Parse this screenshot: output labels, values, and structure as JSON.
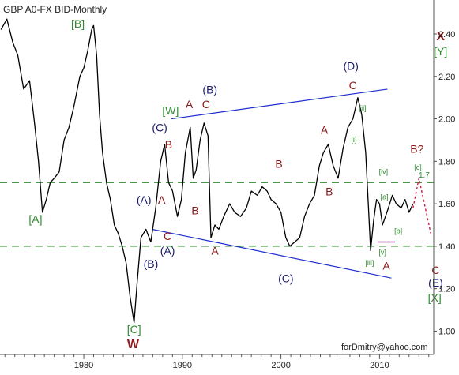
{
  "chart_data": {
    "type": "line",
    "title": "GBP A0-FX BID-Monthly",
    "watermark": "forDmitry@yahoo.com",
    "x_ticks": [
      1980,
      1990,
      2000,
      2010
    ],
    "y_ticks": [
      "1.00",
      "1.20",
      "1.40",
      "1.60",
      "1.80",
      "2.00",
      "2.20",
      "2.40"
    ],
    "xlim": [
      1971.5,
      2015.5
    ],
    "ylim": [
      0.89,
      2.56
    ],
    "grid": false,
    "series": [
      {
        "values": [
          [
            1971.6,
            2.42
          ],
          [
            1972.2,
            2.47
          ],
          [
            1972.8,
            2.36
          ],
          [
            1973.3,
            2.3
          ],
          [
            1973.9,
            2.14
          ],
          [
            1974.5,
            2.18
          ],
          [
            1975.0,
            1.98
          ],
          [
            1975.4,
            1.8
          ],
          [
            1975.8,
            1.56
          ],
          [
            1976.2,
            1.62
          ],
          [
            1976.6,
            1.7
          ],
          [
            1977.0,
            1.72
          ],
          [
            1977.5,
            1.75
          ],
          [
            1978.0,
            1.9
          ],
          [
            1978.5,
            1.96
          ],
          [
            1979.0,
            2.06
          ],
          [
            1979.6,
            2.2
          ],
          [
            1980.0,
            2.24
          ],
          [
            1980.4,
            2.32
          ],
          [
            1980.8,
            2.42
          ],
          [
            1981.0,
            2.44
          ],
          [
            1981.3,
            2.3
          ],
          [
            1981.6,
            2.02
          ],
          [
            1981.9,
            1.84
          ],
          [
            1982.3,
            1.7
          ],
          [
            1982.7,
            1.62
          ],
          [
            1983.1,
            1.5
          ],
          [
            1983.5,
            1.46
          ],
          [
            1983.9,
            1.4
          ],
          [
            1984.3,
            1.32
          ],
          [
            1984.7,
            1.16
          ],
          [
            1985.1,
            1.04
          ],
          [
            1985.4,
            1.22
          ],
          [
            1985.8,
            1.44
          ],
          [
            1986.3,
            1.48
          ],
          [
            1986.8,
            1.42
          ],
          [
            1987.3,
            1.58
          ],
          [
            1987.8,
            1.8
          ],
          [
            1988.2,
            1.88
          ],
          [
            1988.6,
            1.7
          ],
          [
            1989.0,
            1.66
          ],
          [
            1989.5,
            1.54
          ],
          [
            1989.9,
            1.62
          ],
          [
            1990.3,
            1.84
          ],
          [
            1990.8,
            1.96
          ],
          [
            1991.1,
            1.72
          ],
          [
            1991.4,
            1.76
          ],
          [
            1991.8,
            1.9
          ],
          [
            1992.2,
            1.98
          ],
          [
            1992.6,
            1.92
          ],
          [
            1992.9,
            1.44
          ],
          [
            1993.3,
            1.5
          ],
          [
            1993.7,
            1.48
          ],
          [
            1994.2,
            1.54
          ],
          [
            1994.8,
            1.6
          ],
          [
            1995.3,
            1.56
          ],
          [
            1995.9,
            1.54
          ],
          [
            1996.5,
            1.58
          ],
          [
            1997.0,
            1.66
          ],
          [
            1997.6,
            1.64
          ],
          [
            1998.1,
            1.68
          ],
          [
            1998.6,
            1.66
          ],
          [
            1999.0,
            1.62
          ],
          [
            1999.5,
            1.6
          ],
          [
            2000.0,
            1.56
          ],
          [
            2000.5,
            1.44
          ],
          [
            2000.9,
            1.4
          ],
          [
            2001.4,
            1.42
          ],
          [
            2001.9,
            1.44
          ],
          [
            2002.4,
            1.54
          ],
          [
            2002.9,
            1.6
          ],
          [
            2003.4,
            1.64
          ],
          [
            2003.9,
            1.78
          ],
          [
            2004.3,
            1.84
          ],
          [
            2004.8,
            1.88
          ],
          [
            2005.3,
            1.78
          ],
          [
            2005.8,
            1.72
          ],
          [
            2006.3,
            1.86
          ],
          [
            2006.8,
            1.96
          ],
          [
            2007.3,
            2.0
          ],
          [
            2007.8,
            2.1
          ],
          [
            2008.2,
            2.02
          ],
          [
            2008.6,
            1.84
          ],
          [
            2008.9,
            1.56
          ],
          [
            2009.1,
            1.38
          ],
          [
            2009.4,
            1.52
          ],
          [
            2009.7,
            1.62
          ],
          [
            2010.0,
            1.6
          ],
          [
            2010.3,
            1.5
          ],
          [
            2010.6,
            1.54
          ],
          [
            2010.9,
            1.58
          ],
          [
            2011.3,
            1.64
          ],
          [
            2011.7,
            1.6
          ],
          [
            2012.2,
            1.58
          ],
          [
            2012.6,
            1.62
          ],
          [
            2013.0,
            1.56
          ],
          [
            2013.4,
            1.6
          ]
        ]
      }
    ],
    "overlays": {
      "support_line": [
        [
          1996.1,
          1.4
        ],
        [
          2015.5,
          1.4
        ]
      ],
      "resistance_line": [
        [
          1975.0,
          1.7
        ],
        [
          2015.5,
          1.7
        ]
      ],
      "resistance_label": "1.7",
      "upper_channel": [
        [
          1988.9,
          2.0
        ],
        [
          2010.8,
          2.14
        ]
      ],
      "lower_channel": [
        [
          1986.9,
          1.48
        ],
        [
          2011.2,
          1.25
        ]
      ],
      "projection_path": [
        [
          2013.4,
          1.58
        ],
        [
          2014.0,
          1.72
        ],
        [
          2015.2,
          1.46
        ]
      ],
      "support_mark": [
        [
          2009.8,
          1.42
        ],
        [
          2016.5,
          1.42
        ]
      ]
    },
    "annotations": [
      {
        "text": "[B]",
        "color": "green",
        "x": 1979.4,
        "y": 2.43
      },
      {
        "text": "[A]",
        "color": "green",
        "x": 1975.1,
        "y": 1.51
      },
      {
        "text": "[C]",
        "color": "green",
        "x": 1985.1,
        "y": 0.99
      },
      {
        "text": "W",
        "color": "darkred",
        "x": 1985.0,
        "y": 0.92
      },
      {
        "text": "X",
        "color": "darkred",
        "x": 2016.2,
        "y": 2.37
      },
      {
        "text": "[Y]",
        "color": "green",
        "x": 2016.2,
        "y": 2.3
      },
      {
        "text": "[W]",
        "color": "green",
        "x": 1988.8,
        "y": 2.02
      },
      {
        "text": "(B)",
        "color": "navy",
        "x": 1992.8,
        "y": 2.12
      },
      {
        "text": "(D)",
        "color": "navy",
        "x": 2007.1,
        "y": 2.23
      },
      {
        "text": "A",
        "color": "darkred",
        "x": 1990.7,
        "y": 2.05
      },
      {
        "text": "C",
        "color": "darkred",
        "x": 1992.4,
        "y": 2.05
      },
      {
        "text": "C",
        "color": "darkred",
        "x": 2007.3,
        "y": 2.14
      },
      {
        "text": "(C)",
        "color": "navy",
        "x": 1987.7,
        "y": 1.94
      },
      {
        "text": "B",
        "color": "darkred",
        "x": 1988.6,
        "y": 1.86
      },
      {
        "text": "A",
        "color": "darkred",
        "x": 2004.4,
        "y": 1.93
      },
      {
        "text": "[ii]",
        "color": "green",
        "x": 2008.3,
        "y": 2.04
      },
      {
        "text": "[i]",
        "color": "green",
        "x": 2007.4,
        "y": 1.89
      },
      {
        "text": "B?",
        "color": "darkred",
        "x": 2013.8,
        "y": 1.84
      },
      {
        "text": "[c]",
        "color": "green",
        "x": 2013.9,
        "y": 1.76
      },
      {
        "text": "B",
        "color": "darkred",
        "x": 1999.8,
        "y": 1.77
      },
      {
        "text": "[iv]",
        "color": "green",
        "x": 2010.4,
        "y": 1.74
      },
      {
        "text": "(A)",
        "color": "navy",
        "x": 1986.1,
        "y": 1.6
      },
      {
        "text": "A",
        "color": "darkred",
        "x": 1987.9,
        "y": 1.6
      },
      {
        "text": "B",
        "color": "darkred",
        "x": 2004.9,
        "y": 1.64
      },
      {
        "text": "[a]",
        "color": "green",
        "x": 2010.5,
        "y": 1.62
      },
      {
        "text": "B",
        "color": "darkred",
        "x": 1991.3,
        "y": 1.55
      },
      {
        "text": "[b]",
        "color": "green",
        "x": 2011.9,
        "y": 1.46
      },
      {
        "text": "C",
        "color": "darkred",
        "x": 1988.5,
        "y": 1.43
      },
      {
        "text": "(A)",
        "color": "navy",
        "x": 1988.5,
        "y": 1.36
      },
      {
        "text": "(B)",
        "color": "navy",
        "x": 1986.8,
        "y": 1.3
      },
      {
        "text": "A",
        "color": "darkred",
        "x": 1993.3,
        "y": 1.36
      },
      {
        "text": "[v]",
        "color": "green",
        "x": 2010.3,
        "y": 1.36
      },
      {
        "text": "[iii]",
        "color": "green",
        "x": 2009.0,
        "y": 1.31
      },
      {
        "text": "A",
        "color": "darkred",
        "x": 2010.7,
        "y": 1.29
      },
      {
        "text": "(C)",
        "color": "navy",
        "x": 2000.5,
        "y": 1.23
      },
      {
        "text": "C",
        "color": "darkred",
        "x": 2015.7,
        "y": 1.27
      },
      {
        "text": "(E)",
        "color": "navy",
        "x": 2015.7,
        "y": 1.21
      },
      {
        "text": "[X]",
        "color": "green",
        "x": 2015.6,
        "y": 1.14
      }
    ],
    "colors": {
      "price": "#000000",
      "dashed": "#2e8b2e",
      "channel": "#1f2fcf",
      "projection": "#cc2244",
      "support_mark": "#b0329a",
      "green": "#2e8b2e",
      "darkred": "#8b1a1a",
      "navy": "#1a1a6e",
      "axis": "#555555"
    }
  }
}
